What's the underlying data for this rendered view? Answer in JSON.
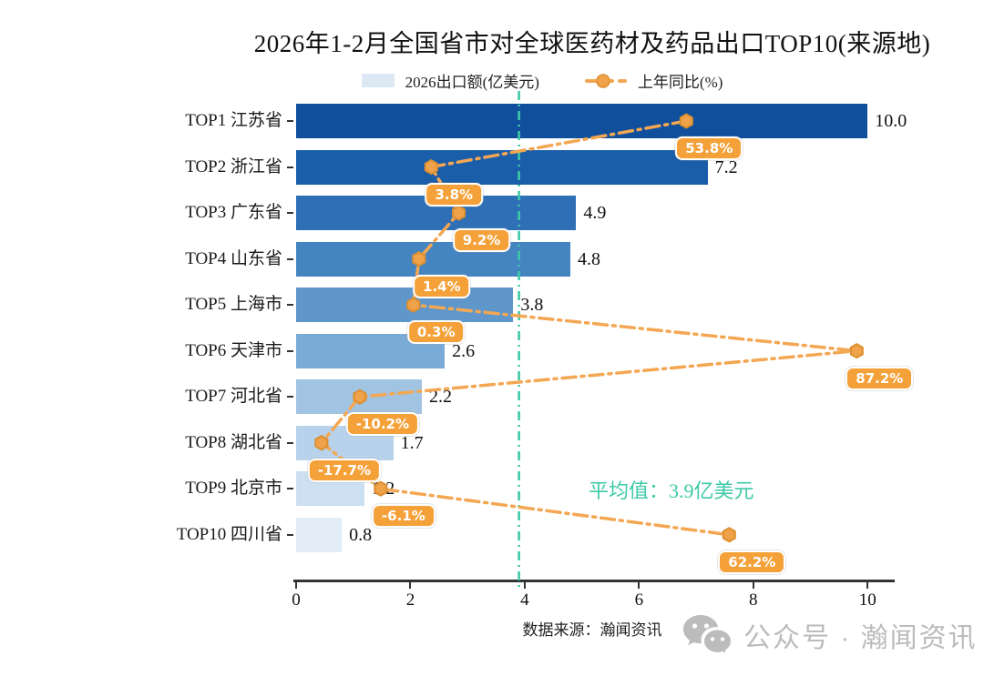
{
  "chart_data": {
    "type": "bar",
    "orientation": "horizontal",
    "title": "2026年1-2月全国省市对全球医药材及药品出口TOP10(来源地)",
    "categories": [
      "TOP1 江苏省",
      "TOP2 浙江省",
      "TOP3 广东省",
      "TOP4 山东省",
      "TOP5 上海市",
      "TOP6 天津市",
      "TOP7 河北省",
      "TOP8 湖北省",
      "TOP9 北京市",
      "TOP10 四川省"
    ],
    "series": [
      {
        "name": "2026出口额(亿美元)",
        "type": "bar",
        "values": [
          10.0,
          7.2,
          4.9,
          4.8,
          3.8,
          2.6,
          2.2,
          1.7,
          1.2,
          0.8
        ],
        "labels": [
          "10.0",
          "7.2",
          "4.9",
          "4.8",
          "3.8",
          "2.6",
          "2.2",
          "1.7",
          "1.2",
          "0.8"
        ]
      },
      {
        "name": "上年同比(%)",
        "type": "line",
        "values": [
          53.8,
          3.8,
          9.2,
          1.4,
          0.3,
          87.2,
          -10.2,
          -17.7,
          -6.1,
          62.2
        ],
        "labels": [
          "53.8%",
          "3.8%",
          "9.2%",
          "1.4%",
          "0.3%",
          "87.2%",
          "-10.2%",
          "-17.7%",
          "-6.1%",
          "62.2%"
        ]
      }
    ],
    "x_ticks": [
      0,
      2,
      4,
      6,
      8,
      10
    ],
    "x_tick_labels": [
      "0",
      "2",
      "4",
      "6",
      "8",
      "10"
    ],
    "xlim": [
      0,
      10.5
    ],
    "grid": false,
    "legend_position": "top",
    "average": {
      "value": 3.9,
      "label": "平均值：3.9亿美元"
    },
    "colors": {
      "bars": [
        "#0f4f9c",
        "#1a5da9",
        "#2e6fb5",
        "#4484c1",
        "#5f97cb",
        "#7aabd6",
        "#a2c4e3",
        "#b7d2ea",
        "#cde0f1",
        "#e2edf8"
      ],
      "legend_swatch": "#dce9f5",
      "line": "#f4a753",
      "marker_fill": "#f0a24a",
      "marker_edge": "#dd8f2f",
      "badge_bg": "#f5a139",
      "average_line": "#3ec9a7",
      "axis": "#333333",
      "watermark": "#bcbcbc"
    }
  },
  "footer": {
    "source": "数据来源：瀚闻资讯",
    "watermark": "公众号 · 瀚闻资讯",
    "watermark_icon": "wechat-icon"
  }
}
